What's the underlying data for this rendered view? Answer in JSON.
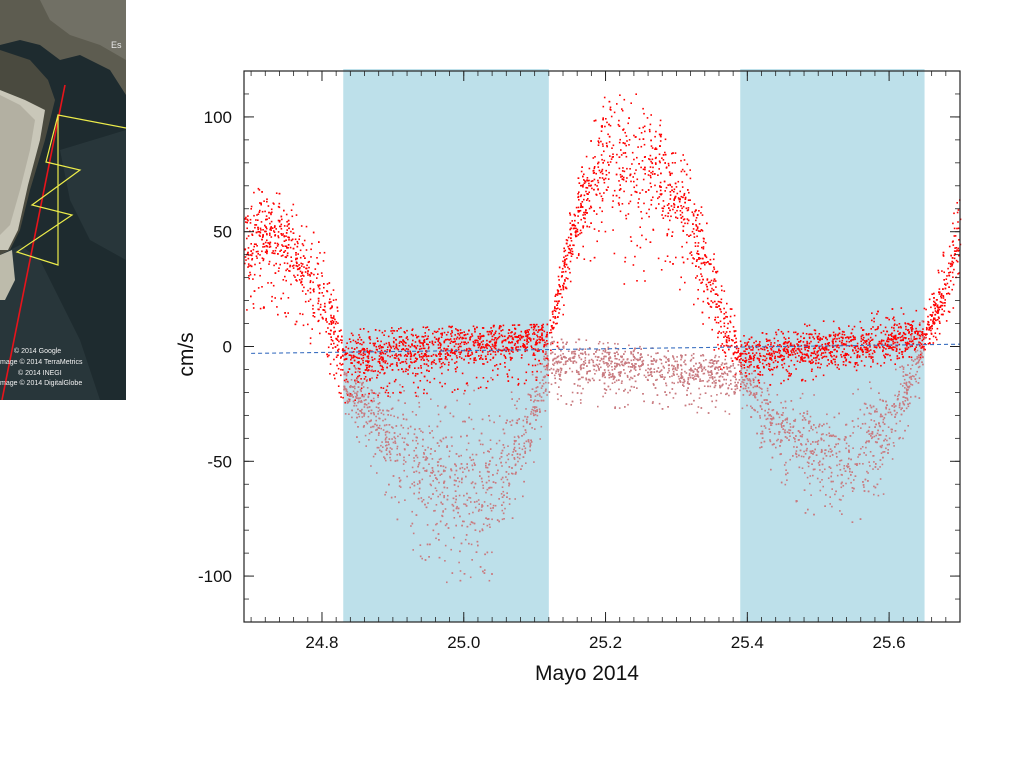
{
  "map": {
    "corner_label": "Es",
    "credits": [
      "© 2014 Google",
      "mage © 2014 TerraMetrics",
      "© 2014 INEGI",
      "mage © 2014 DigitalGlobe"
    ],
    "colors": {
      "water": "#1f2a2e",
      "sand": "#c8c6b8",
      "route_line": "#e8141b",
      "track": "#ecec4a"
    }
  },
  "chart_data": {
    "type": "scatter",
    "title": "",
    "xlabel": "Mayo 2014",
    "ylabel": "cm/s",
    "xlim": [
      24.69,
      25.7
    ],
    "ylim": [
      -120,
      120
    ],
    "x_ticks": [
      24.8,
      25.0,
      25.2,
      25.4,
      25.6
    ],
    "x_tick_labels": [
      "24.8",
      "25.0",
      "25.2",
      "25.4",
      "25.6"
    ],
    "y_ticks": [
      100,
      50,
      0,
      -50,
      -100
    ],
    "y_tick_labels": [
      "100",
      "50",
      "0",
      "-50",
      "-100"
    ],
    "grid": false,
    "shaded_intervals": [
      {
        "x0": 24.83,
        "x1": 25.12
      },
      {
        "x0": 25.39,
        "x1": 25.65
      }
    ],
    "series": [
      {
        "role": "flood (positive velocity)",
        "color": "#ff0000",
        "envelope": {
          "x": [
            24.69,
            24.72,
            24.76,
            24.8,
            24.83,
            25.12,
            25.16,
            25.2,
            25.24,
            25.28,
            25.32,
            25.36,
            25.39,
            25.65,
            25.68,
            25.7
          ],
          "upper": [
            65,
            72,
            62,
            45,
            8,
            10,
            80,
            115,
            112,
            100,
            78,
            35,
            5,
            20,
            45,
            72
          ],
          "lower": [
            10,
            15,
            10,
            -5,
            -25,
            -15,
            40,
            30,
            25,
            30,
            20,
            -10,
            -20,
            -5,
            10,
            25
          ],
          "center": [
            45,
            50,
            42,
            20,
            -5,
            5,
            60,
            80,
            80,
            75,
            55,
            15,
            -5,
            5,
            25,
            50
          ]
        }
      },
      {
        "role": "ebb (negative velocity)",
        "color": "#c97b80",
        "envelope": {
          "x": [
            24.83,
            24.88,
            24.93,
            24.98,
            25.03,
            25.06,
            25.09,
            25.12,
            25.39,
            25.44,
            25.49,
            25.54,
            25.59,
            25.62,
            25.65
          ],
          "upper": [
            -8,
            -10,
            -20,
            -15,
            -10,
            -20,
            -15,
            5,
            -5,
            -20,
            -20,
            -20,
            -10,
            0,
            15
          ],
          "lower": [
            -30,
            -60,
            -90,
            -105,
            -110,
            -80,
            -60,
            -25,
            -30,
            -60,
            -75,
            -80,
            -70,
            -40,
            -15
          ],
          "center": [
            -15,
            -35,
            -50,
            -60,
            -65,
            -55,
            -35,
            -5,
            -12,
            -35,
            -45,
            -48,
            -38,
            -20,
            0
          ]
        }
      },
      {
        "role": "residual trend",
        "color": "#3a6fc0",
        "style": "dashed",
        "x": [
          24.7,
          25.7
        ],
        "y": [
          -3,
          1
        ]
      }
    ]
  },
  "colors": {
    "shade": "#bde0ea",
    "axis": "#222222"
  }
}
